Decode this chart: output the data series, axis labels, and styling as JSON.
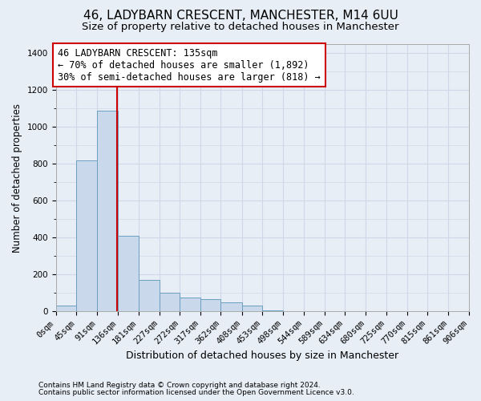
{
  "title": "46, LADYBARN CRESCENT, MANCHESTER, M14 6UU",
  "subtitle": "Size of property relative to detached houses in Manchester",
  "xlabel": "Distribution of detached houses by size in Manchester",
  "ylabel": "Number of detached properties",
  "bar_edges": [
    0,
    45,
    91,
    136,
    181,
    227,
    272,
    317,
    362,
    408,
    453,
    498,
    544,
    589,
    634,
    680,
    725,
    770,
    815,
    861,
    906
  ],
  "bar_heights": [
    30,
    820,
    1090,
    410,
    170,
    100,
    75,
    65,
    50,
    30,
    5,
    0,
    0,
    0,
    0,
    0,
    0,
    0,
    0,
    0
  ],
  "bar_color": "#c9d9eb",
  "bar_edge_color": "#6a9fc0",
  "property_line_x": 135,
  "property_line_color": "#cc0000",
  "annotation_line1": "46 LADYBARN CRESCENT: 135sqm",
  "annotation_line2": "← 70% of detached houses are smaller (1,892)",
  "annotation_line3": "30% of semi-detached houses are larger (818) →",
  "annotation_box_color": "#ffffff",
  "annotation_box_edge_color": "#cc0000",
  "ylim": [
    0,
    1450
  ],
  "yticks": [
    0,
    200,
    400,
    600,
    800,
    1000,
    1200,
    1400
  ],
  "xlim_max": 906,
  "footnote1": "Contains HM Land Registry data © Crown copyright and database right 2024.",
  "footnote2": "Contains public sector information licensed under the Open Government Licence v3.0.",
  "background_color": "#e8eef6",
  "grid_color": "#d0d8e8",
  "title_fontsize": 11,
  "subtitle_fontsize": 9.5,
  "ylabel_fontsize": 8.5,
  "xlabel_fontsize": 9,
  "tick_label_fontsize": 7.5,
  "annotation_fontsize": 8.5,
  "footnote_fontsize": 6.5
}
